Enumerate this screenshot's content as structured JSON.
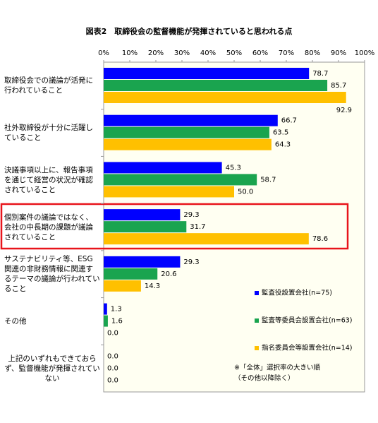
{
  "chart_data": {
    "type": "bar",
    "orientation": "horizontal",
    "title": "図表2　取締役会の監督機能が発揮されていると思われる点",
    "categories": [
      "取締役会での議論が活発に行われていること",
      "社外取締役が十分に活躍していること",
      "決議事項以上に、報告事項を通じて経営の状況が確認されていること",
      "個別案件の議論ではなく、会社の中長期の課題が議論されていること",
      "サステナビリティ等、ESG関連の非財務情報に関連するテーマの議論が行われていること",
      "その他",
      "上記のいずれもできておらず、監督機能が発揮されていない"
    ],
    "series": [
      {
        "name": "監査役設置会社(n=75)",
        "color": "#0000ff",
        "values": [
          78.7,
          66.7,
          45.3,
          29.3,
          29.3,
          1.3,
          0.0
        ],
        "value_labels": [
          "78.7",
          "66.7",
          "45.3",
          "29.3",
          "29.3",
          "1.3",
          "0.0"
        ]
      },
      {
        "name": "監査等委員会設置会社(n=63)",
        "color": "#1aa44f",
        "values": [
          85.7,
          63.5,
          58.7,
          31.7,
          20.6,
          1.6,
          0.0
        ],
        "value_labels": [
          "85.7",
          "63.5",
          "58.7",
          "31.7",
          "20.6",
          "1.6",
          "0.0"
        ]
      },
      {
        "name": "指名委員会等設置会社(n=14)",
        "color": "#ffc000",
        "values": [
          92.9,
          64.3,
          50.0,
          78.6,
          14.3,
          0.0,
          0.0
        ],
        "value_labels": [
          "92.9",
          "64.3",
          "50.0",
          "78.6",
          "14.3",
          "0.0",
          "0.0"
        ]
      }
    ],
    "xlim": [
      0,
      100
    ],
    "xticks": [
      {
        "value": 0,
        "label": "0%"
      },
      {
        "value": 10,
        "label": "10%"
      },
      {
        "value": 20,
        "label": "20%"
      },
      {
        "value": 30,
        "label": "30%"
      },
      {
        "value": 40,
        "label": "40%"
      },
      {
        "value": 50,
        "label": "50%"
      },
      {
        "value": 60,
        "label": "60%"
      },
      {
        "value": 70,
        "label": "70%"
      },
      {
        "value": 80,
        "label": "80%"
      },
      {
        "value": 90,
        "label": "90%"
      },
      {
        "value": 100,
        "label": "100%"
      }
    ],
    "notes": [
      "※「全体」選択率の大きい順",
      "（その他以降除く）"
    ]
  }
}
